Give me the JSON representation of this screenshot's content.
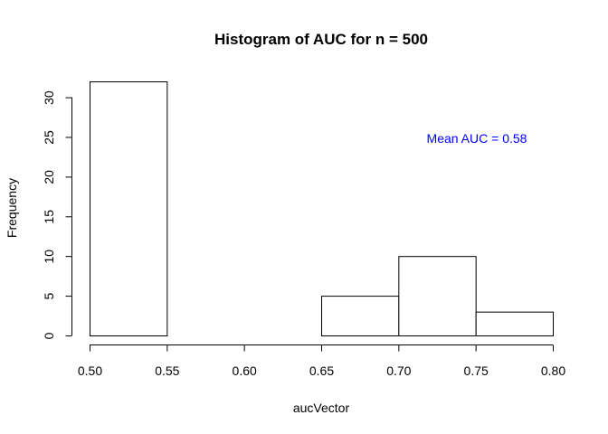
{
  "chart_data": {
    "type": "bar",
    "title": "Histogram of AUC for n =  500",
    "xlabel": "aucVector",
    "ylabel": "Frequency",
    "bins": [
      {
        "start": 0.5,
        "end": 0.55,
        "count": 32
      },
      {
        "start": 0.55,
        "end": 0.6,
        "count": 0
      },
      {
        "start": 0.6,
        "end": 0.65,
        "count": 0
      },
      {
        "start": 0.65,
        "end": 0.7,
        "count": 5
      },
      {
        "start": 0.7,
        "end": 0.75,
        "count": 10
      },
      {
        "start": 0.75,
        "end": 0.8,
        "count": 3
      }
    ],
    "xlim": [
      0.5,
      0.8
    ],
    "ylim": [
      0,
      32
    ],
    "x_ticks": [
      0.5,
      0.55,
      0.6,
      0.65,
      0.7,
      0.75,
      0.8
    ],
    "x_tick_labels": [
      "0.50",
      "0.55",
      "0.60",
      "0.65",
      "0.70",
      "0.75",
      "0.80"
    ],
    "y_ticks": [
      0,
      5,
      10,
      15,
      20,
      25,
      30
    ],
    "y_tick_labels": [
      "0",
      "5",
      "10",
      "15",
      "20",
      "25",
      "30"
    ],
    "annotation": {
      "text": "Mean AUC =  0.58",
      "color": "#0000ff"
    },
    "grid": false,
    "bar_fill": "#ffffff",
    "bar_stroke": "#000000"
  }
}
